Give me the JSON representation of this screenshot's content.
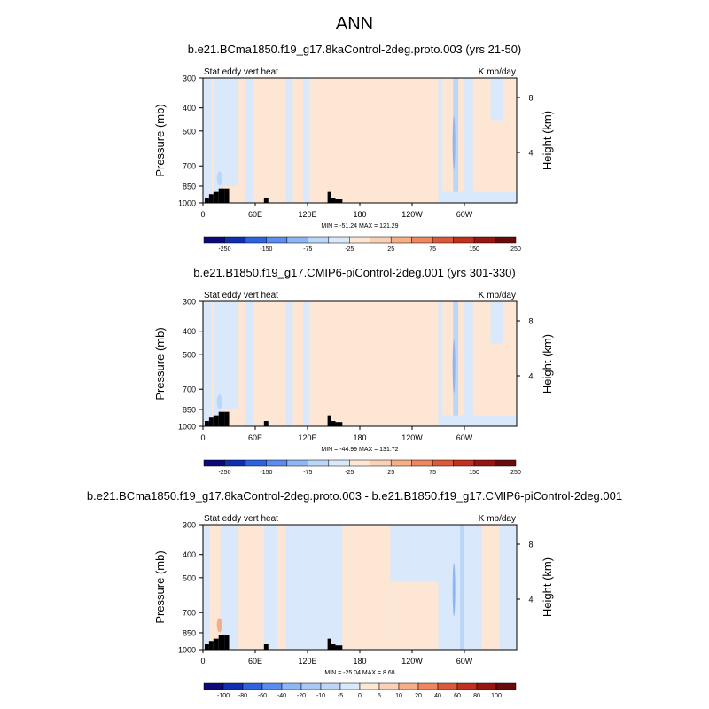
{
  "page": {
    "title": "ANN"
  },
  "chart_data": [
    {
      "type": "heatmap",
      "title": "b.e21.BCma1850.f19_g17.8kaControl-2deg.proto.003 (yrs 21-50)",
      "left_string": "Stat eddy vert heat",
      "right_string": "K mb/day",
      "ylabel": "Pressure (mb)",
      "y2label": "Height (km)",
      "x_ticks": [
        "0",
        "60E",
        "120E",
        "180",
        "120W",
        "60W"
      ],
      "y_ticks": [
        "300",
        "400",
        "500",
        "700",
        "850",
        "1000"
      ],
      "y2_ticks": [
        "8",
        "4"
      ],
      "stats": "MIN = -51.24   MAX = 121.29",
      "colorbar_labels": [
        "-250",
        "-150",
        "-75",
        "-25",
        "25",
        "75",
        "150",
        "250"
      ],
      "fill": "mostly weak positive (25 to 25 band) with weak negative near 10-40E, 140-150E and 60-70W"
    },
    {
      "type": "heatmap",
      "title": "b.e21.B1850.f19_g17.CMIP6-piControl-2deg.001 (yrs 301-330)",
      "left_string": "Stat eddy vert heat",
      "right_string": "K mb/day",
      "ylabel": "Pressure (mb)",
      "y2label": "Height (km)",
      "x_ticks": [
        "0",
        "60E",
        "120E",
        "180",
        "120W",
        "60W"
      ],
      "y_ticks": [
        "300",
        "400",
        "500",
        "700",
        "850",
        "1000"
      ],
      "y2_ticks": [
        "8",
        "4"
      ],
      "stats": "MIN = -44.99   MAX = 131.72",
      "colorbar_labels": [
        "-250",
        "-150",
        "-75",
        "-25",
        "25",
        "75",
        "150",
        "250"
      ],
      "fill": "mostly weak positive with weak negative near 10-40E, 140-150E and 60-70W"
    },
    {
      "type": "heatmap",
      "title": "b.e21.BCma1850.f19_g17.8kaControl-2deg.proto.003 - b.e21.B1850.f19_g17.CMIP6-piControl-2deg.001",
      "left_string": "Stat eddy vert heat",
      "right_string": "K mb/day",
      "ylabel": "Pressure (mb)",
      "y2label": "Height (km)",
      "x_ticks": [
        "0",
        "60E",
        "120E",
        "180",
        "120W",
        "60W"
      ],
      "y_ticks": [
        "300",
        "400",
        "500",
        "700",
        "850",
        "1000"
      ],
      "y2_ticks": [
        "8",
        "4"
      ],
      "stats": "MIN = -25.04   MAX =   8.68",
      "colorbar_labels": [
        "-100",
        "-80",
        "-60",
        "-40",
        "-20",
        "-10",
        "-5",
        "0",
        "5",
        "10",
        "20",
        "40",
        "60",
        "80",
        "100"
      ],
      "fill": "mixed weak negative (-5 to 0) and weak positive (0 to 5)"
    }
  ],
  "colors": {
    "diverging": [
      "#0a0a7a",
      "#0f2fb0",
      "#2f62de",
      "#5b8df0",
      "#8eb6f5",
      "#bcd6f8",
      "#d9e9fb",
      "#fde6d4",
      "#fbd0b5",
      "#f6ae89",
      "#ee8660",
      "#dc5a3c",
      "#c2311f",
      "#991512",
      "#6b0a0a"
    ],
    "diverging_16": [
      "#0a0a7a",
      "#0f2fb0",
      "#2f62de",
      "#5b8df0",
      "#8eb6f5",
      "#a9c8f7",
      "#bcd6f8",
      "#d9e9fb",
      "#fde6d4",
      "#fbd0b5",
      "#f6ae89",
      "#ee8660",
      "#dc5a3c",
      "#c2311f",
      "#991512",
      "#6b0a0a"
    ],
    "light_blue": "#d9e9fb",
    "light_orange": "#fde6d4",
    "mid_blue": "#bcd6f8",
    "topo": "#000000"
  }
}
